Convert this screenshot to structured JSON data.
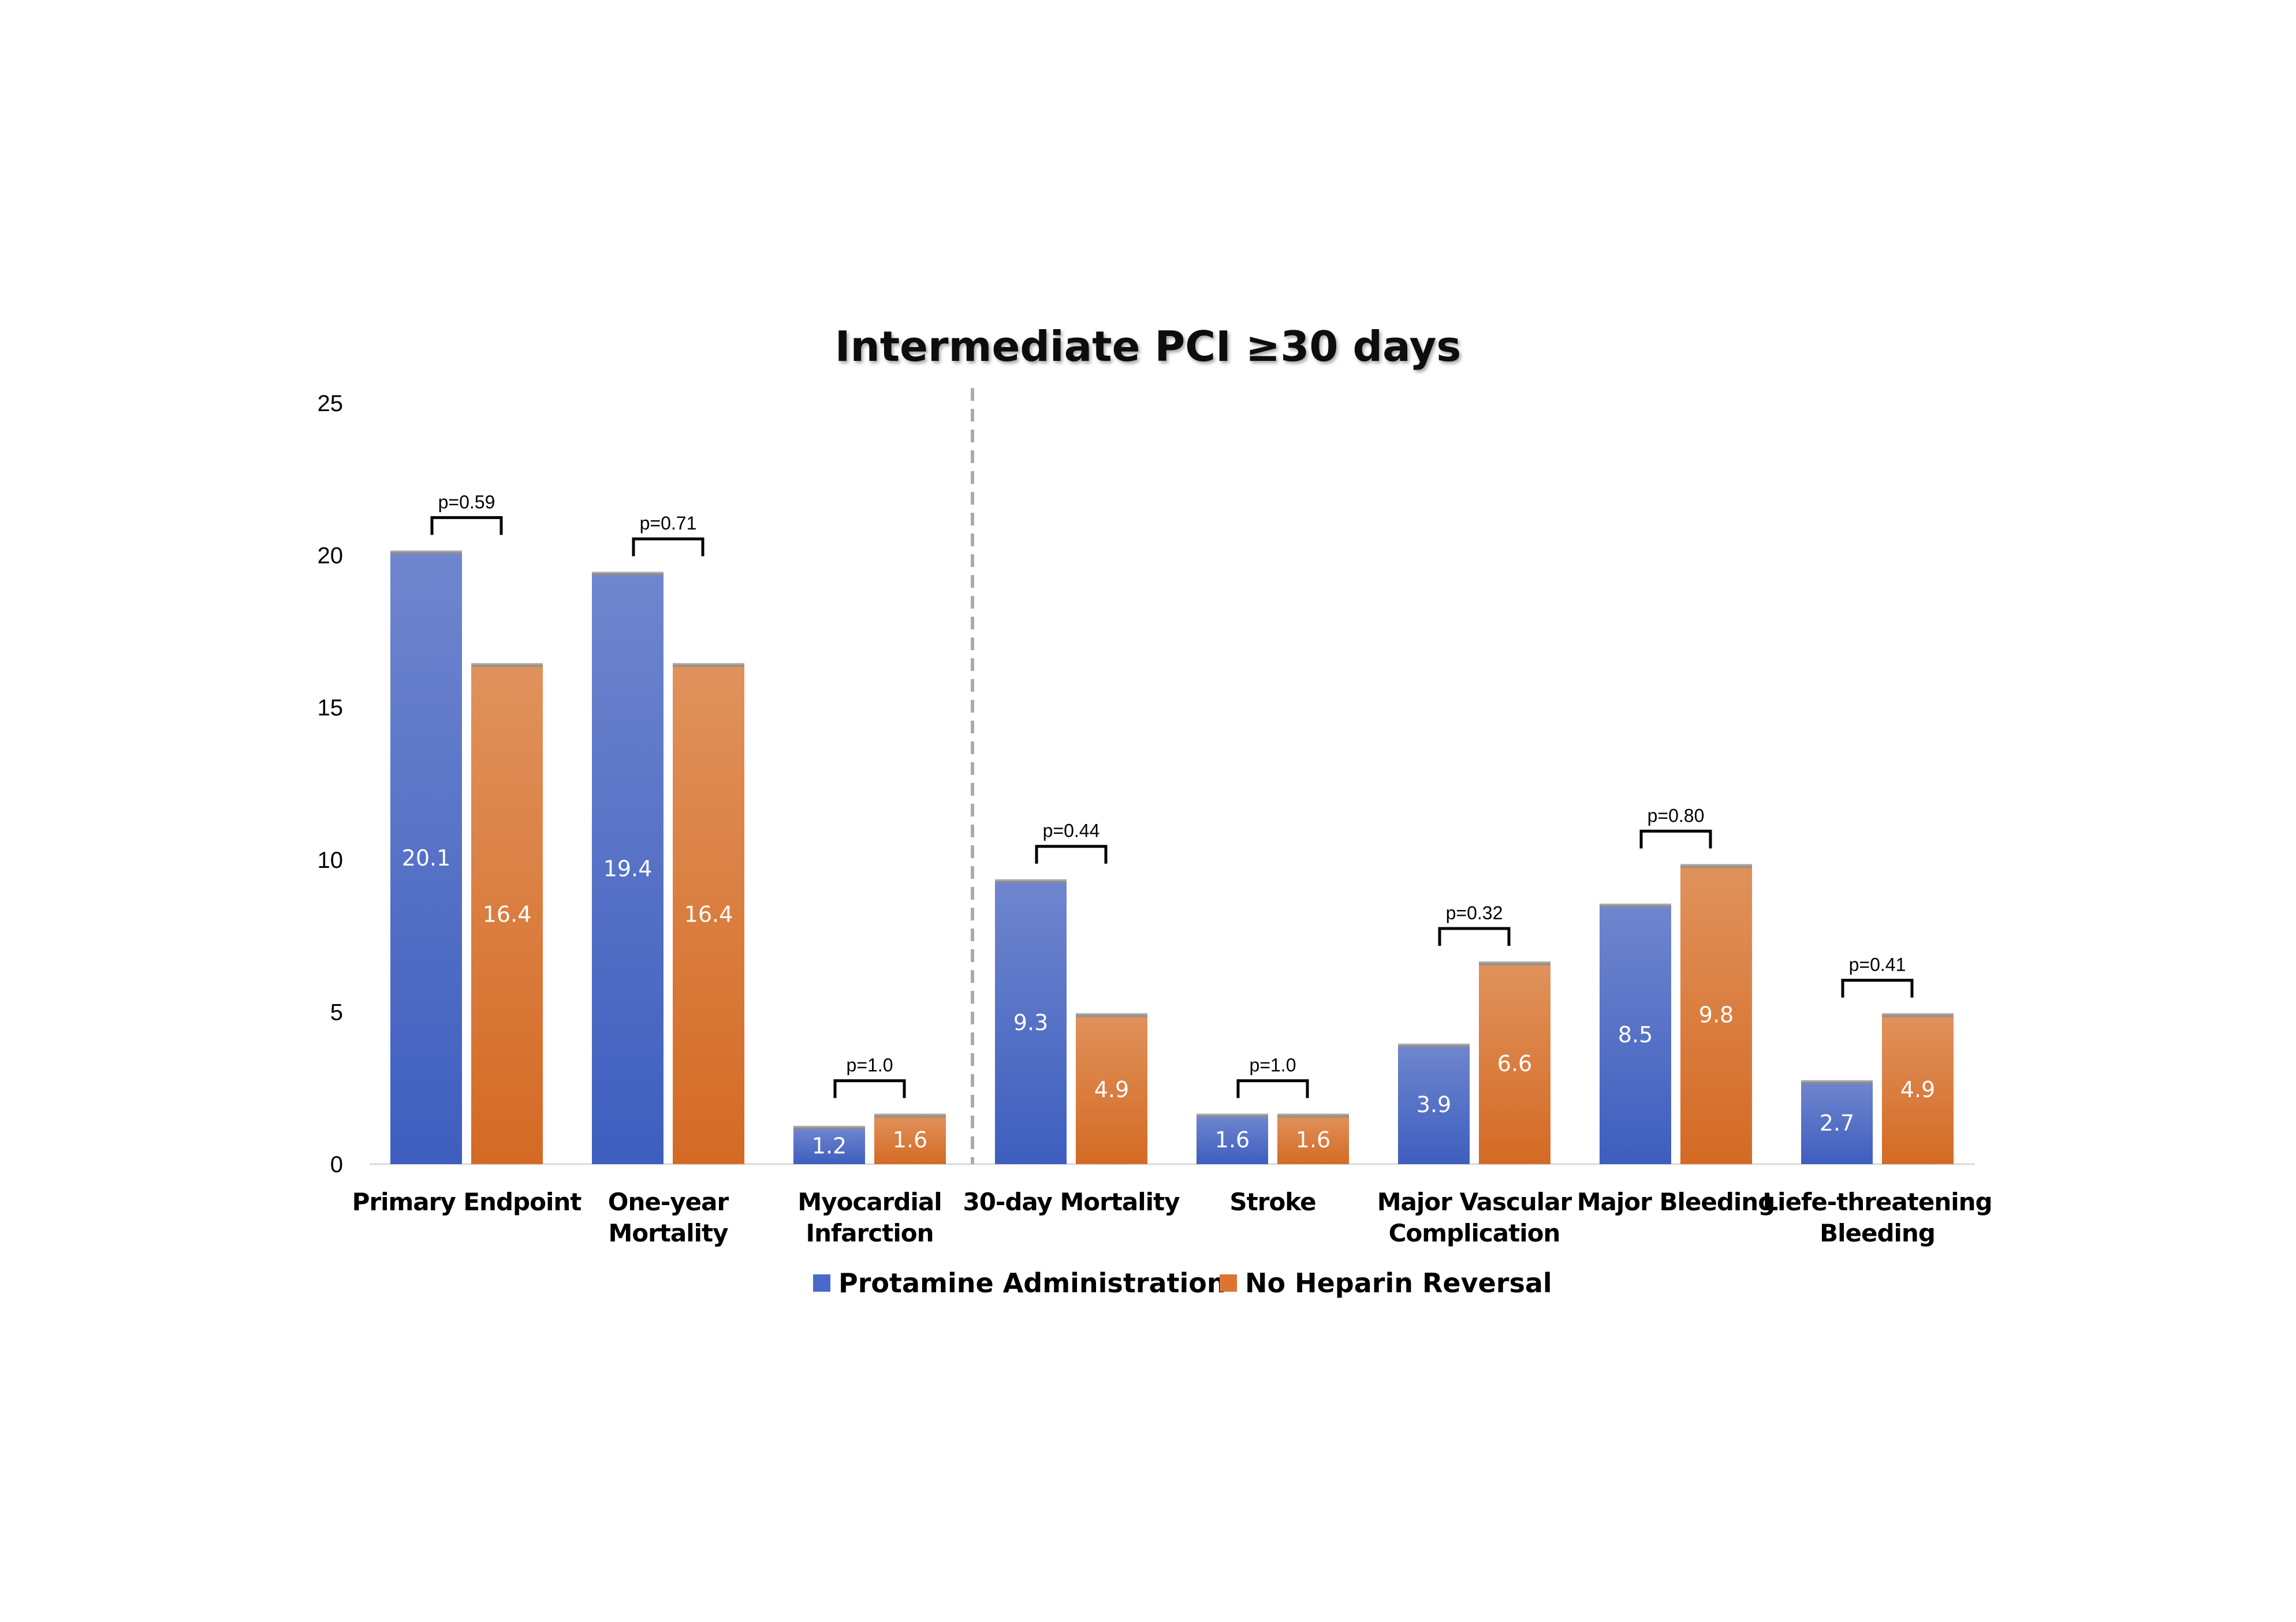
{
  "chart_data": {
    "type": "bar",
    "title": "Intermediate PCI ≥30 days",
    "ylim": [
      0,
      25
    ],
    "yticks": [
      "0",
      "5",
      "10",
      "15",
      "20",
      "25"
    ],
    "categories": [
      [
        "Primary Endpoint"
      ],
      [
        "One-year",
        "Mortality"
      ],
      [
        "Myocardial",
        "Infarction"
      ],
      [
        "30-day Mortality"
      ],
      [
        "Stroke"
      ],
      [
        "Major Vascular",
        "Complication"
      ],
      [
        "Major Bleeding"
      ],
      [
        "Liefe-threatening",
        "Bleeding"
      ]
    ],
    "series": [
      {
        "name": "Protamine Administration",
        "color": "#4A69C8",
        "values": [
          20.1,
          19.4,
          1.2,
          9.3,
          1.6,
          3.9,
          8.5,
          2.7
        ]
      },
      {
        "name": "No Heparin Reversal",
        "color": "#DB7531",
        "values": [
          16.4,
          16.4,
          1.6,
          4.9,
          1.6,
          6.6,
          9.8,
          4.9
        ]
      }
    ],
    "p_values": [
      "p=0.59",
      "p=0.71",
      "p=1.0",
      "p=0.44",
      "p=1.0",
      "p=0.32",
      "p=0.80",
      "p=0.41"
    ],
    "divider_after_category": 3,
    "grid": false,
    "legend_position": "bottom"
  }
}
